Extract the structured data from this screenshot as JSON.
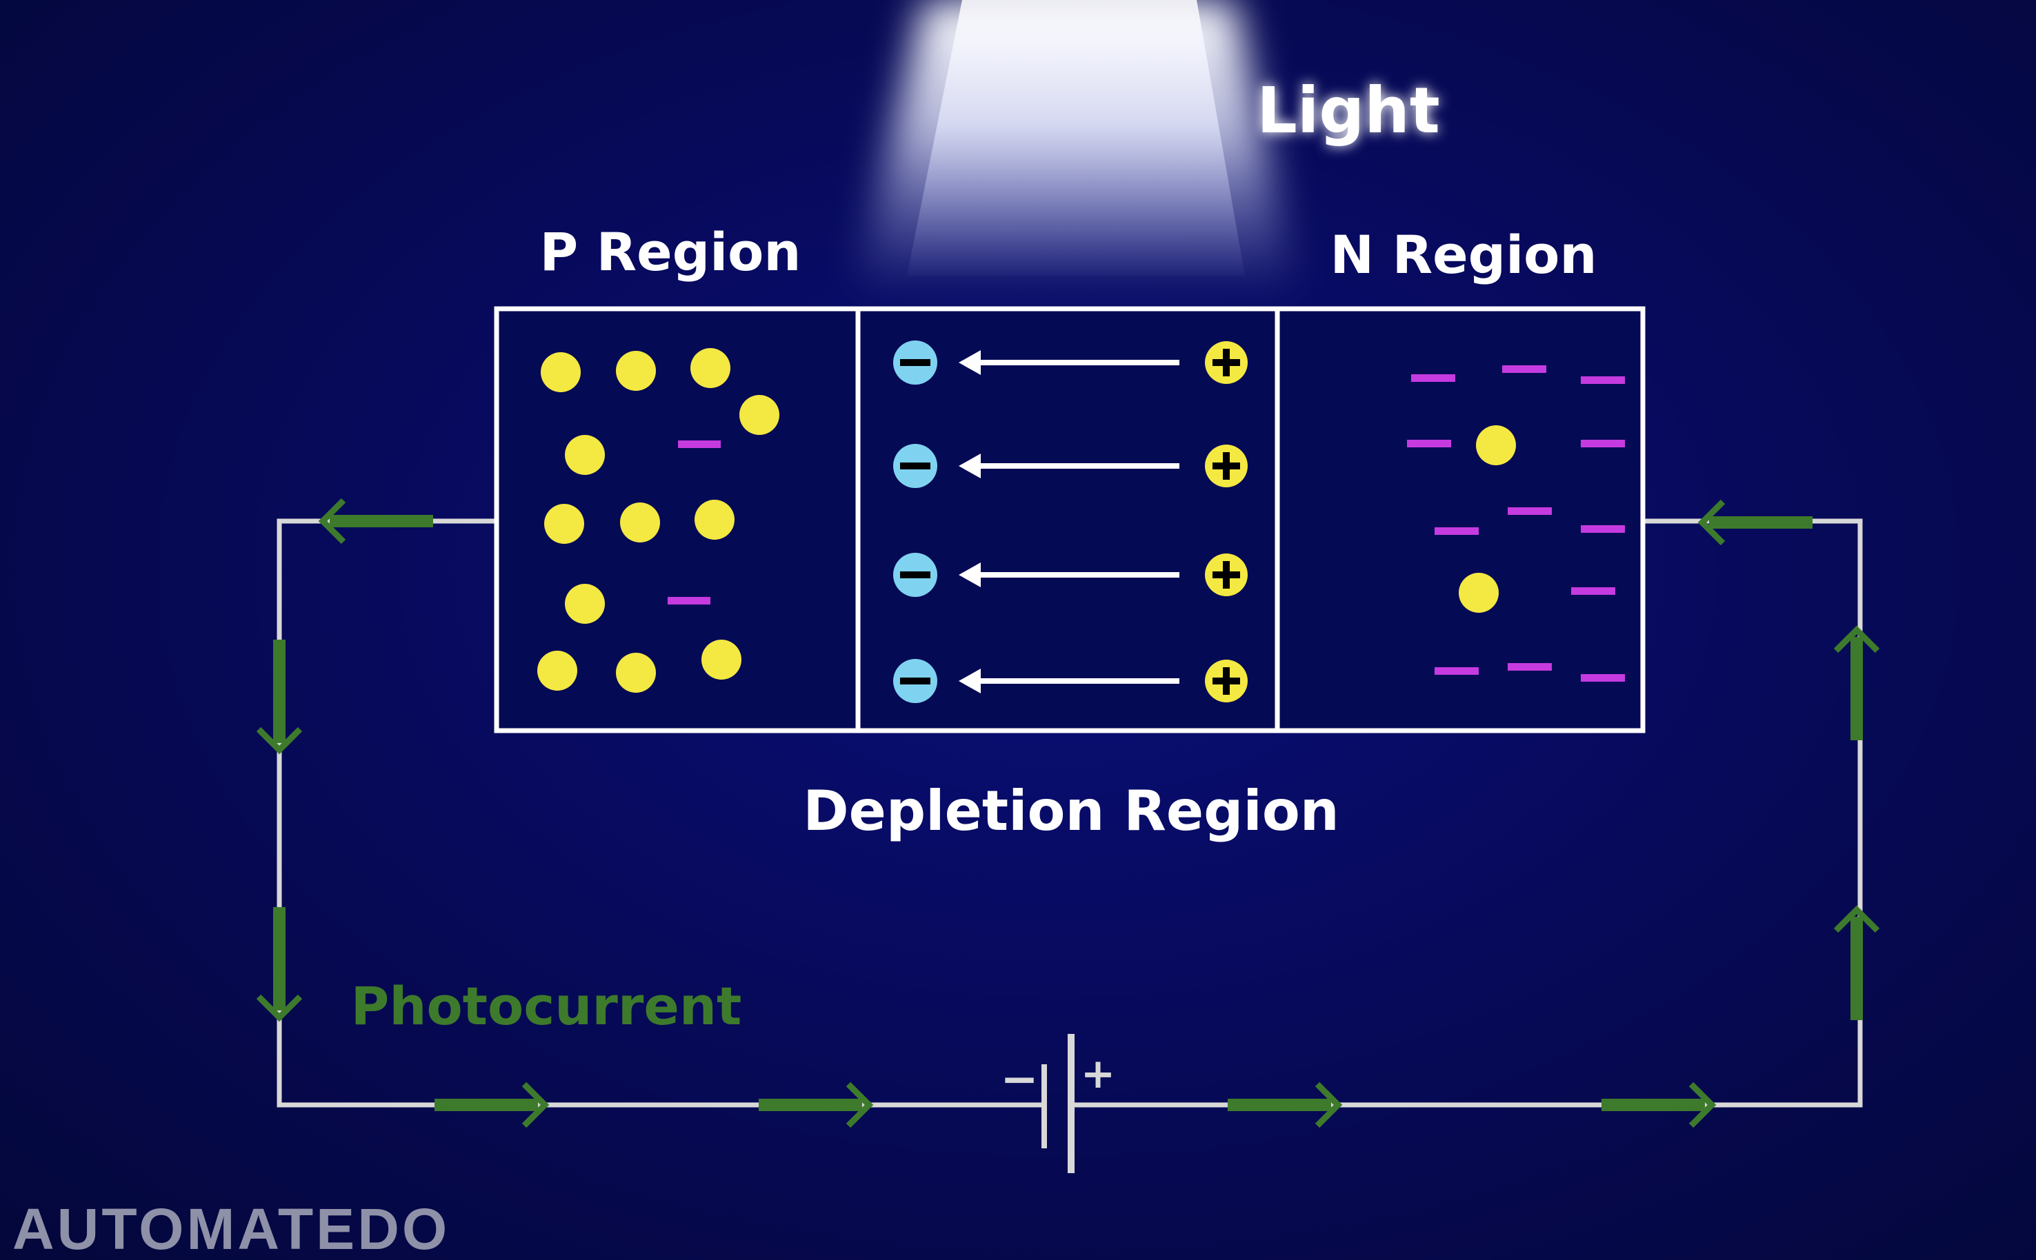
{
  "labels": {
    "light": "Light",
    "p_region": "P Region",
    "n_region": "N Region",
    "depletion_region": "Depletion Region",
    "photocurrent": "Photocurrent"
  },
  "battery": {
    "negative_sign": "−",
    "positive_sign": "+"
  },
  "watermark": "AUTOMATEDO",
  "colors": {
    "hole": "#f4e842",
    "electron_dash": "#c63be0",
    "negative_ion": "#7fd3f0",
    "positive_ion": "#f4e842",
    "current_arrow": "#3e7a2c",
    "photocurrent_text": "#3e7a2c",
    "wire": "#d8d8d8"
  },
  "icons": {
    "negative_ion": "minus-in-circle",
    "positive_ion": "plus-in-circle",
    "hole": "filled-circle",
    "electron": "short-dash"
  }
}
